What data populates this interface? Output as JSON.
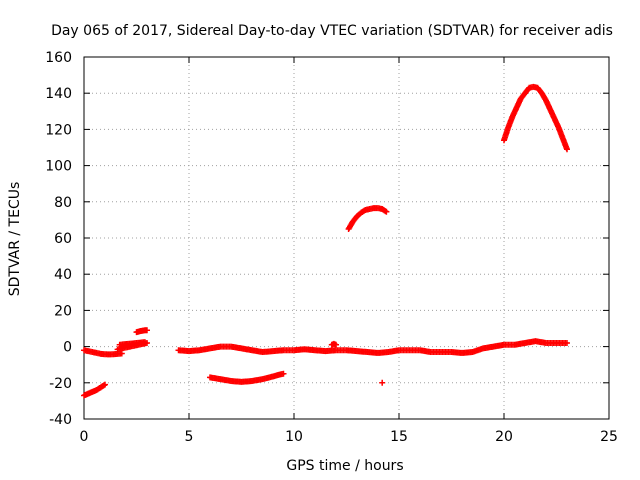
{
  "chart_data": {
    "type": "scatter",
    "title": "Day 065 of 2017, Sidereal Day-to-day VTEC variation (SDTVAR) for receiver adis",
    "xlabel": "GPS time / hours",
    "ylabel": "SDTVAR / TECUs",
    "xlim": [
      0,
      25
    ],
    "ylim": [
      -40,
      160
    ],
    "xticks": [
      0,
      5,
      10,
      15,
      20,
      25
    ],
    "yticks": [
      -40,
      -20,
      0,
      20,
      40,
      60,
      80,
      100,
      120,
      140,
      160
    ],
    "grid": true,
    "legend": "none",
    "marker": "+",
    "color": "#ff0000",
    "series": [
      {
        "name": "segment-1",
        "x": [
          0.0,
          0.2,
          0.4,
          0.6,
          0.8,
          1.0
        ],
        "y": [
          -27,
          -26,
          -25,
          -24,
          -22.5,
          -21
        ]
      },
      {
        "name": "segment-2",
        "x": [
          0.0,
          0.2,
          0.4,
          0.6,
          0.8,
          1.0,
          1.2,
          1.4,
          1.6,
          1.8
        ],
        "y": [
          -2,
          -2.5,
          -3,
          -3.5,
          -4,
          -4.2,
          -4.3,
          -4.2,
          -4,
          -3.8
        ]
      },
      {
        "name": "segment-3",
        "x": [
          1.6,
          1.8,
          2.0,
          2.2,
          2.4,
          2.6,
          2.8,
          3.0
        ],
        "y": [
          -1.5,
          -1,
          -0.5,
          0,
          0.5,
          1,
          1.5,
          2
        ]
      },
      {
        "name": "segment-4",
        "x": [
          1.7,
          1.9,
          2.1,
          2.3,
          2.5,
          2.7,
          2.9
        ],
        "y": [
          1,
          1.3,
          1.5,
          1.7,
          2,
          2.2,
          2.5
        ]
      },
      {
        "name": "segment-5",
        "x": [
          2.5,
          2.6,
          2.7,
          2.8,
          2.9,
          3.0
        ],
        "y": [
          8,
          8.3,
          8.6,
          8.8,
          9,
          9
        ]
      },
      {
        "name": "segment-6",
        "x": [
          4.5,
          5.0,
          5.5,
          6.0,
          6.5,
          7.0,
          7.5,
          8.0,
          8.5,
          9.0,
          9.5,
          10.0,
          10.5,
          11.0,
          11.5,
          12.0,
          12.5,
          13.0,
          13.5,
          14.0,
          14.5,
          15.0,
          15.5,
          16.0,
          16.5,
          17.0,
          17.5,
          18.0,
          18.5,
          19.0,
          19.5,
          20.0,
          20.5,
          21.0,
          21.5,
          22.0,
          22.5,
          23.0
        ],
        "y": [
          -2,
          -2.5,
          -2,
          -1,
          0,
          0,
          -1,
          -2,
          -3,
          -2.5,
          -2,
          -2,
          -1.5,
          -2,
          -2.5,
          -2,
          -2,
          -2.5,
          -3,
          -3.5,
          -3,
          -2,
          -2,
          -2,
          -3,
          -3,
          -3,
          -3.5,
          -3,
          -1,
          0,
          1,
          1,
          2,
          3,
          2,
          2,
          2
        ]
      },
      {
        "name": "segment-7",
        "x": [
          6.0,
          6.5,
          7.0,
          7.5,
          8.0,
          8.5,
          9.0,
          9.3,
          9.5
        ],
        "y": [
          -17,
          -18,
          -19,
          -19.5,
          -19,
          -18,
          -16.5,
          -15.5,
          -15
        ]
      },
      {
        "name": "segment-8",
        "x": [
          11.8,
          11.9,
          12.0
        ],
        "y": [
          1,
          1.5,
          1
        ]
      },
      {
        "name": "segment-9",
        "x": [
          12.6,
          12.8,
          13.0,
          13.2,
          13.4,
          13.6,
          13.8,
          14.0,
          14.2,
          14.4
        ],
        "y": [
          65,
          69,
          72,
          74,
          75.5,
          76,
          76.5,
          76.5,
          76,
          74.5
        ]
      },
      {
        "name": "segment-10",
        "x": [
          14.2
        ],
        "y": [
          -20
        ]
      },
      {
        "name": "segment-11",
        "x": [
          20.0,
          20.2,
          20.4,
          20.6,
          20.8,
          21.0,
          21.2,
          21.4,
          21.6,
          21.8,
          22.0,
          22.2,
          22.4,
          22.6,
          22.8,
          23.0
        ],
        "y": [
          114,
          121,
          127,
          132,
          137,
          140,
          143,
          143.5,
          143,
          140,
          136,
          131,
          126,
          121,
          115,
          109
        ]
      }
    ]
  }
}
